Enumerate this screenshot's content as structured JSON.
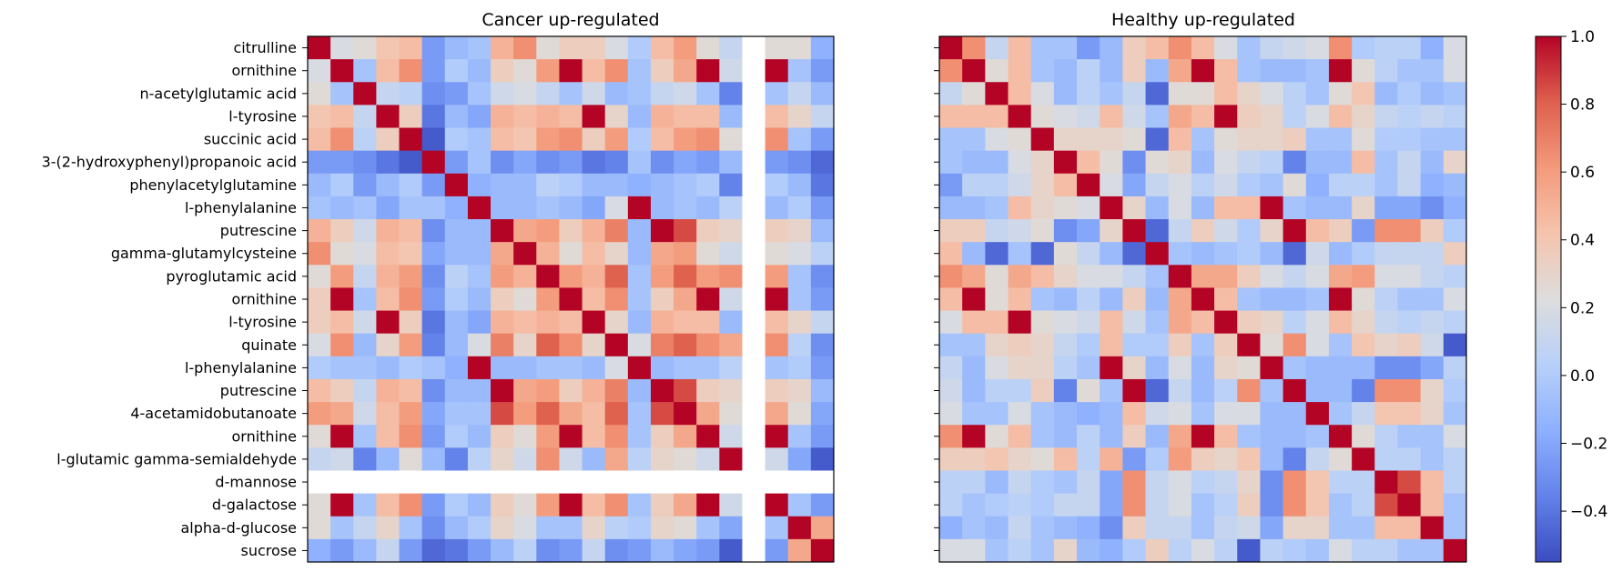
{
  "chart_data": [
    {
      "type": "heatmap",
      "title": "Cancer up-regulated",
      "row_labels": [
        "citrulline",
        "ornithine",
        "n-acetylglutamic acid",
        "l-tyrosine",
        "succinic acid",
        "3-(2-hydroxyphenyl)propanoic acid",
        "phenylacetylglutamine",
        "l-phenylalanine",
        "putrescine",
        "gamma-glutamylcysteine",
        "pyroglutamic acid",
        "ornithine",
        "l-tyrosine",
        "quinate",
        "l-phenylalanine",
        "putrescine",
        "4-acetamidobutanoate",
        "ornithine",
        "l-glutamic gamma-semialdehyde",
        "d-mannose",
        "d-galactose",
        "alpha-d-glucose",
        "sucrose"
      ],
      "matrix": [
        [
          1.0,
          0.2,
          0.25,
          0.4,
          0.45,
          -0.25,
          -0.1,
          -0.05,
          0.5,
          0.65,
          0.25,
          0.35,
          0.35,
          0.2,
          0.0,
          0.45,
          0.6,
          0.25,
          0.1,
          null,
          0.25,
          0.25,
          -0.15
        ],
        [
          0.2,
          1.0,
          -0.05,
          0.45,
          0.65,
          -0.25,
          0.0,
          -0.1,
          0.35,
          0.25,
          0.6,
          1.0,
          0.45,
          0.65,
          -0.05,
          0.35,
          0.55,
          1.0,
          0.15,
          null,
          1.0,
          -0.05,
          -0.25
        ],
        [
          0.25,
          -0.05,
          1.0,
          0.1,
          0.05,
          -0.3,
          -0.25,
          -0.05,
          0.15,
          0.2,
          0.1,
          -0.05,
          0.15,
          -0.1,
          -0.05,
          0.1,
          0.15,
          -0.05,
          -0.35,
          null,
          -0.05,
          0.1,
          -0.1
        ],
        [
          0.4,
          0.45,
          0.1,
          1.0,
          0.35,
          -0.4,
          -0.1,
          -0.2,
          0.5,
          0.45,
          0.5,
          0.45,
          1.0,
          0.3,
          -0.1,
          0.5,
          0.45,
          0.45,
          -0.1,
          null,
          0.45,
          0.3,
          0.1
        ],
        [
          0.45,
          0.65,
          0.05,
          0.35,
          1.0,
          -0.5,
          0.0,
          -0.05,
          0.45,
          0.4,
          0.6,
          0.65,
          0.35,
          0.6,
          0.0,
          0.45,
          0.6,
          0.65,
          0.25,
          null,
          0.65,
          -0.05,
          -0.25
        ],
        [
          -0.25,
          -0.25,
          -0.3,
          -0.4,
          -0.5,
          1.0,
          -0.25,
          -0.05,
          -0.3,
          -0.2,
          -0.3,
          -0.25,
          -0.4,
          -0.35,
          -0.05,
          -0.3,
          -0.2,
          -0.25,
          -0.1,
          null,
          -0.25,
          -0.3,
          -0.45
        ],
        [
          -0.1,
          0.0,
          -0.25,
          -0.1,
          0.0,
          -0.25,
          1.0,
          -0.15,
          -0.1,
          -0.1,
          0.05,
          0.0,
          -0.1,
          -0.1,
          -0.15,
          -0.1,
          -0.05,
          0.0,
          -0.35,
          null,
          0.0,
          -0.1,
          -0.4
        ],
        [
          -0.05,
          -0.1,
          -0.05,
          -0.2,
          -0.05,
          -0.05,
          -0.15,
          1.0,
          -0.1,
          -0.1,
          -0.05,
          -0.1,
          -0.2,
          0.2,
          1.0,
          -0.1,
          -0.05,
          -0.1,
          0.05,
          null,
          -0.1,
          0.0,
          -0.25
        ],
        [
          0.5,
          0.35,
          0.15,
          0.5,
          0.45,
          -0.3,
          -0.1,
          -0.1,
          1.0,
          0.55,
          0.6,
          0.35,
          0.5,
          0.7,
          -0.1,
          1.0,
          0.85,
          0.35,
          0.3,
          null,
          0.35,
          0.3,
          -0.1
        ],
        [
          0.65,
          0.25,
          0.2,
          0.45,
          0.4,
          -0.2,
          -0.1,
          -0.1,
          0.55,
          1.0,
          0.5,
          0.25,
          0.45,
          0.3,
          -0.1,
          0.55,
          0.6,
          0.25,
          0.15,
          null,
          0.25,
          0.2,
          0.05
        ],
        [
          0.25,
          0.6,
          0.1,
          0.5,
          0.6,
          -0.3,
          0.05,
          -0.05,
          0.6,
          0.5,
          1.0,
          0.6,
          0.5,
          0.8,
          -0.05,
          0.6,
          0.8,
          0.6,
          0.65,
          null,
          0.6,
          -0.05,
          -0.3
        ],
        [
          0.35,
          1.0,
          -0.05,
          0.45,
          0.65,
          -0.25,
          0.0,
          -0.1,
          0.35,
          0.25,
          0.6,
          1.0,
          0.45,
          0.65,
          -0.05,
          0.35,
          0.55,
          1.0,
          0.15,
          null,
          1.0,
          -0.05,
          -0.25
        ],
        [
          0.35,
          0.45,
          0.15,
          1.0,
          0.35,
          -0.4,
          -0.1,
          -0.2,
          0.5,
          0.45,
          0.5,
          0.45,
          1.0,
          0.3,
          -0.1,
          0.5,
          0.45,
          0.45,
          -0.1,
          null,
          0.45,
          0.3,
          0.1
        ],
        [
          0.2,
          0.65,
          -0.1,
          0.3,
          0.6,
          -0.35,
          -0.1,
          0.2,
          0.7,
          0.3,
          0.8,
          0.65,
          0.3,
          1.0,
          0.2,
          0.7,
          0.8,
          0.65,
          0.55,
          null,
          0.65,
          0.05,
          -0.3
        ],
        [
          0.0,
          -0.05,
          -0.05,
          -0.1,
          0.0,
          -0.05,
          -0.15,
          1.0,
          -0.1,
          -0.1,
          -0.05,
          -0.05,
          -0.1,
          0.2,
          1.0,
          -0.1,
          -0.05,
          -0.05,
          0.05,
          null,
          -0.05,
          0.0,
          -0.25
        ],
        [
          0.45,
          0.35,
          0.1,
          0.5,
          0.45,
          -0.3,
          -0.1,
          -0.1,
          1.0,
          0.55,
          0.6,
          0.35,
          0.5,
          0.7,
          -0.1,
          1.0,
          0.85,
          0.35,
          0.3,
          null,
          0.35,
          0.3,
          -0.1
        ],
        [
          0.6,
          0.55,
          0.15,
          0.45,
          0.6,
          -0.2,
          -0.05,
          -0.05,
          0.85,
          0.6,
          0.8,
          0.55,
          0.45,
          0.8,
          -0.05,
          0.85,
          1.0,
          0.55,
          0.25,
          null,
          0.55,
          0.25,
          -0.2
        ],
        [
          0.25,
          1.0,
          -0.05,
          0.45,
          0.65,
          -0.25,
          0.0,
          -0.1,
          0.35,
          0.25,
          0.6,
          1.0,
          0.45,
          0.65,
          -0.05,
          0.35,
          0.55,
          1.0,
          0.15,
          null,
          1.0,
          -0.05,
          -0.25
        ],
        [
          0.1,
          0.15,
          -0.35,
          -0.1,
          0.25,
          -0.1,
          -0.35,
          0.05,
          0.3,
          0.15,
          0.65,
          0.15,
          -0.1,
          0.55,
          0.05,
          0.3,
          0.25,
          0.15,
          1.0,
          null,
          0.15,
          -0.2,
          -0.5
        ],
        [
          null,
          null,
          null,
          null,
          null,
          null,
          null,
          null,
          null,
          null,
          null,
          null,
          null,
          null,
          null,
          null,
          null,
          null,
          null,
          null,
          null,
          null,
          null
        ],
        [
          0.25,
          1.0,
          -0.05,
          0.45,
          0.65,
          -0.25,
          0.0,
          -0.1,
          0.35,
          0.25,
          0.6,
          1.0,
          0.45,
          0.65,
          -0.05,
          0.35,
          0.55,
          1.0,
          0.15,
          null,
          1.0,
          -0.05,
          -0.25
        ],
        [
          0.25,
          -0.05,
          0.1,
          0.3,
          -0.05,
          -0.3,
          -0.1,
          0.0,
          0.3,
          0.2,
          -0.05,
          -0.05,
          0.3,
          0.05,
          0.0,
          0.3,
          0.25,
          -0.05,
          -0.2,
          null,
          -0.05,
          1.0,
          0.55
        ],
        [
          -0.15,
          -0.25,
          -0.1,
          0.1,
          -0.25,
          -0.45,
          -0.4,
          -0.25,
          -0.1,
          0.05,
          -0.3,
          -0.25,
          0.1,
          -0.3,
          -0.25,
          -0.1,
          -0.2,
          -0.25,
          -0.5,
          null,
          -0.25,
          0.55,
          1.0
        ]
      ]
    },
    {
      "type": "heatmap",
      "title": "Healthy up-regulated",
      "matrix": [
        [
          1.0,
          0.65,
          0.1,
          0.45,
          -0.05,
          -0.05,
          -0.25,
          -0.1,
          0.35,
          0.45,
          0.65,
          0.45,
          0.2,
          -0.05,
          0.1,
          0.15,
          0.2,
          0.65,
          0.0,
          0.05,
          0.05,
          -0.15,
          0.2
        ],
        [
          0.65,
          1.0,
          0.25,
          0.45,
          -0.05,
          -0.1,
          0.05,
          -0.1,
          0.35,
          -0.1,
          0.55,
          1.0,
          0.45,
          -0.05,
          -0.1,
          -0.1,
          -0.05,
          1.0,
          0.25,
          0.05,
          -0.05,
          -0.05,
          0.2
        ],
        [
          0.1,
          0.25,
          1.0,
          0.45,
          0.2,
          -0.1,
          0.05,
          -0.05,
          0.1,
          -0.45,
          0.25,
          0.25,
          0.45,
          0.3,
          0.2,
          0.05,
          -0.05,
          0.25,
          0.4,
          -0.1,
          0.0,
          -0.1,
          -0.05
        ],
        [
          0.45,
          0.45,
          0.45,
          1.0,
          0.25,
          0.2,
          0.15,
          0.45,
          0.15,
          -0.05,
          0.55,
          0.45,
          1.0,
          0.35,
          0.3,
          0.05,
          0.2,
          0.45,
          0.3,
          0.1,
          0.05,
          0.1,
          0.05
        ],
        [
          -0.05,
          -0.05,
          0.2,
          0.25,
          1.0,
          0.3,
          0.3,
          0.3,
          0.25,
          -0.45,
          0.45,
          -0.05,
          0.25,
          0.3,
          0.3,
          0.35,
          -0.05,
          -0.05,
          0.25,
          0.0,
          0.0,
          -0.05,
          -0.05
        ],
        [
          -0.05,
          -0.1,
          -0.1,
          0.2,
          0.3,
          1.0,
          0.45,
          0.25,
          -0.3,
          0.25,
          0.3,
          -0.1,
          0.2,
          0.1,
          0.05,
          -0.35,
          -0.1,
          -0.1,
          0.45,
          -0.05,
          0.1,
          -0.1,
          0.3
        ],
        [
          -0.25,
          0.05,
          0.05,
          0.15,
          0.3,
          0.45,
          1.0,
          0.2,
          -0.2,
          0.1,
          0.2,
          0.05,
          0.15,
          0.0,
          -0.05,
          0.25,
          -0.15,
          0.05,
          0.05,
          -0.05,
          0.1,
          -0.15,
          -0.1
        ],
        [
          -0.1,
          -0.1,
          -0.05,
          0.45,
          0.3,
          0.25,
          0.2,
          1.0,
          0.3,
          -0.1,
          0.2,
          -0.1,
          0.45,
          0.45,
          1.0,
          -0.05,
          -0.1,
          -0.1,
          0.3,
          -0.2,
          -0.2,
          -0.3,
          -0.15
        ],
        [
          0.35,
          0.35,
          0.1,
          0.15,
          0.25,
          -0.3,
          -0.2,
          0.3,
          1.0,
          -0.45,
          0.1,
          0.35,
          0.15,
          0.0,
          0.3,
          1.0,
          0.45,
          0.35,
          -0.25,
          0.65,
          0.65,
          0.35,
          0.0
        ],
        [
          0.45,
          -0.1,
          -0.45,
          -0.05,
          -0.45,
          0.25,
          0.1,
          -0.1,
          -0.45,
          1.0,
          -0.05,
          -0.1,
          -0.05,
          0.0,
          -0.1,
          -0.45,
          0.15,
          -0.1,
          0.0,
          0.1,
          0.1,
          0.1,
          0.35
        ],
        [
          0.65,
          0.55,
          0.25,
          0.55,
          0.45,
          0.3,
          0.2,
          0.2,
          0.1,
          -0.05,
          1.0,
          0.55,
          0.55,
          0.35,
          0.2,
          0.1,
          0.2,
          0.55,
          0.6,
          0.2,
          0.2,
          0.1,
          0.05
        ],
        [
          0.45,
          1.0,
          0.25,
          0.45,
          -0.05,
          -0.1,
          0.05,
          -0.1,
          0.35,
          -0.1,
          0.55,
          1.0,
          0.45,
          -0.05,
          -0.1,
          -0.1,
          -0.05,
          1.0,
          0.25,
          0.05,
          -0.05,
          -0.05,
          0.2
        ],
        [
          0.2,
          0.45,
          0.45,
          1.0,
          0.25,
          0.2,
          0.15,
          0.45,
          0.15,
          -0.05,
          0.55,
          0.45,
          1.0,
          0.35,
          0.3,
          0.05,
          0.2,
          0.45,
          0.3,
          0.1,
          0.05,
          0.1,
          0.05
        ],
        [
          -0.05,
          -0.05,
          0.3,
          0.35,
          0.3,
          0.1,
          0.0,
          0.45,
          0.0,
          0.0,
          0.35,
          -0.05,
          0.35,
          1.0,
          0.25,
          0.65,
          0.2,
          -0.05,
          0.4,
          0.3,
          0.35,
          0.15,
          -0.5
        ],
        [
          0.1,
          -0.1,
          0.2,
          0.3,
          0.3,
          0.05,
          -0.05,
          1.0,
          0.3,
          -0.1,
          0.2,
          -0.1,
          0.3,
          0.25,
          1.0,
          -0.05,
          -0.1,
          -0.1,
          -0.1,
          -0.3,
          -0.3,
          -0.2,
          0.05
        ],
        [
          0.15,
          -0.1,
          0.05,
          0.05,
          0.35,
          -0.35,
          0.25,
          -0.05,
          1.0,
          -0.45,
          0.1,
          -0.1,
          0.05,
          0.65,
          -0.05,
          1.0,
          -0.1,
          -0.1,
          -0.35,
          0.65,
          0.65,
          0.3,
          0.0
        ],
        [
          0.2,
          -0.05,
          -0.05,
          0.2,
          -0.05,
          -0.1,
          -0.15,
          -0.1,
          0.45,
          0.15,
          0.2,
          -0.05,
          0.2,
          0.2,
          -0.1,
          -0.1,
          1.0,
          -0.05,
          0.1,
          0.4,
          0.4,
          0.3,
          -0.05
        ],
        [
          0.65,
          1.0,
          0.25,
          0.45,
          -0.05,
          -0.1,
          0.05,
          -0.1,
          0.35,
          -0.1,
          0.55,
          1.0,
          0.45,
          -0.05,
          -0.1,
          -0.1,
          -0.05,
          1.0,
          0.25,
          0.05,
          -0.05,
          -0.05,
          0.2
        ],
        [
          0.35,
          0.35,
          0.4,
          0.3,
          0.25,
          0.45,
          0.05,
          0.5,
          -0.25,
          0.0,
          0.6,
          0.35,
          0.3,
          0.4,
          -0.1,
          -0.35,
          0.1,
          0.25,
          1.0,
          0.05,
          0.05,
          -0.05,
          0.05
        ],
        [
          0.05,
          0.05,
          -0.1,
          0.1,
          0.0,
          -0.05,
          0.1,
          -0.2,
          0.65,
          0.1,
          0.2,
          0.05,
          0.1,
          0.3,
          -0.3,
          0.65,
          0.4,
          0.05,
          0.05,
          1.0,
          0.85,
          0.45,
          0.05
        ],
        [
          0.05,
          -0.05,
          0.0,
          0.05,
          0.0,
          0.1,
          0.1,
          -0.2,
          0.65,
          0.1,
          0.2,
          -0.05,
          0.05,
          0.35,
          -0.3,
          0.65,
          0.4,
          -0.05,
          0.05,
          0.85,
          1.0,
          0.45,
          -0.05
        ],
        [
          -0.15,
          -0.05,
          -0.1,
          0.1,
          -0.05,
          -0.1,
          -0.15,
          -0.3,
          0.35,
          0.1,
          0.1,
          -0.05,
          0.1,
          0.15,
          -0.2,
          0.3,
          0.3,
          -0.05,
          -0.05,
          0.45,
          0.45,
          1.0,
          -0.05
        ],
        [
          0.2,
          0.2,
          -0.05,
          0.05,
          -0.05,
          0.3,
          -0.1,
          -0.15,
          0.0,
          0.35,
          0.05,
          0.2,
          0.05,
          -0.5,
          0.05,
          0.0,
          -0.05,
          0.2,
          0.05,
          0.05,
          -0.05,
          -0.05,
          1.0
        ]
      ]
    }
  ],
  "colorbar": {
    "colormap": "coolwarm",
    "vmin": -0.55,
    "vmax": 1.0,
    "ticks": [
      -0.4,
      -0.2,
      0.0,
      0.2,
      0.4,
      0.6,
      0.8,
      1.0
    ],
    "tick_labels": [
      "−0.4",
      "−0.2",
      "0.0",
      "0.2",
      "0.4",
      "0.6",
      "0.8",
      "1.0"
    ]
  }
}
